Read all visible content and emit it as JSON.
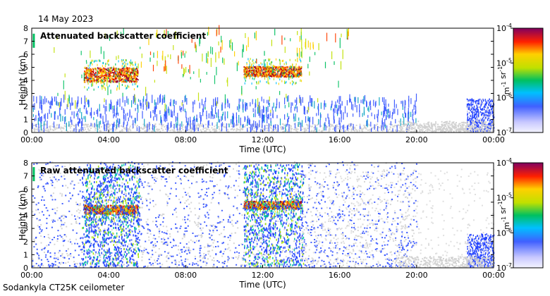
{
  "page": {
    "date": "14 May 2023",
    "footer": "Sodankyla CT25K ceilometer"
  },
  "chart_data": [
    {
      "type": "heatmap",
      "title": "Attenuated backscatter coefficient",
      "xlabel": "Time (UTC)",
      "ylabel": "Height (km)",
      "x_ticks": [
        "00:00",
        "04:00",
        "08:00",
        "12:00",
        "16:00",
        "20:00",
        "00:00"
      ],
      "x_range_hours": [
        0,
        24
      ],
      "y_ticks": [
        "0",
        "1",
        "2",
        "3",
        "4",
        "5",
        "6",
        "7",
        "8"
      ],
      "ylim": [
        0,
        8
      ],
      "colorbar": {
        "scale": "log",
        "range": [
          1e-07,
          0.0001
        ],
        "tick_labels": [
          "10-7",
          "10-6",
          "10-5",
          "10-4"
        ],
        "unit": "m-1 sr-1"
      },
      "features": [
        {
          "kind": "cloud_layer",
          "hours": [
            2.7,
            5.5
          ],
          "height_km": [
            3.8,
            4.9
          ]
        },
        {
          "kind": "cloud_layer",
          "hours": [
            11.0,
            14.0
          ],
          "height_km": [
            4.2,
            5.0
          ]
        },
        {
          "kind": "low_noise",
          "hours": [
            0,
            24
          ],
          "height_km": [
            0,
            0.6
          ]
        },
        {
          "kind": "boundary_layer",
          "hours": [
            22.6,
            24
          ],
          "height_km": [
            0,
            2.5
          ]
        }
      ]
    },
    {
      "type": "heatmap",
      "title": "Raw attenuated backscatter coefficient",
      "xlabel": "Time (UTC)",
      "ylabel": "Height (km)",
      "x_ticks": [
        "00:00",
        "04:00",
        "08:00",
        "12:00",
        "16:00",
        "20:00",
        "00:00"
      ],
      "x_range_hours": [
        0,
        24
      ],
      "y_ticks": [
        "0",
        "1",
        "2",
        "3",
        "4",
        "5",
        "6",
        "7",
        "8"
      ],
      "ylim": [
        0,
        8
      ],
      "colorbar": {
        "scale": "log",
        "range": [
          1e-07,
          0.0001
        ],
        "tick_labels": [
          "10-7",
          "10-6",
          "10-5",
          "10-4"
        ],
        "unit": "m-1 sr-1"
      },
      "features": [
        {
          "kind": "cloud_layer",
          "hours": [
            2.7,
            5.5
          ],
          "height_km": [
            4.0,
            4.7
          ]
        },
        {
          "kind": "cloud_layer",
          "hours": [
            11.0,
            14.0
          ],
          "height_km": [
            4.4,
            5.0
          ]
        },
        {
          "kind": "noise_field",
          "hours": [
            0,
            20
          ],
          "height_km": [
            0,
            8
          ]
        },
        {
          "kind": "boundary_layer",
          "hours": [
            22.6,
            24
          ],
          "height_km": [
            0,
            2.5
          ]
        }
      ]
    }
  ]
}
